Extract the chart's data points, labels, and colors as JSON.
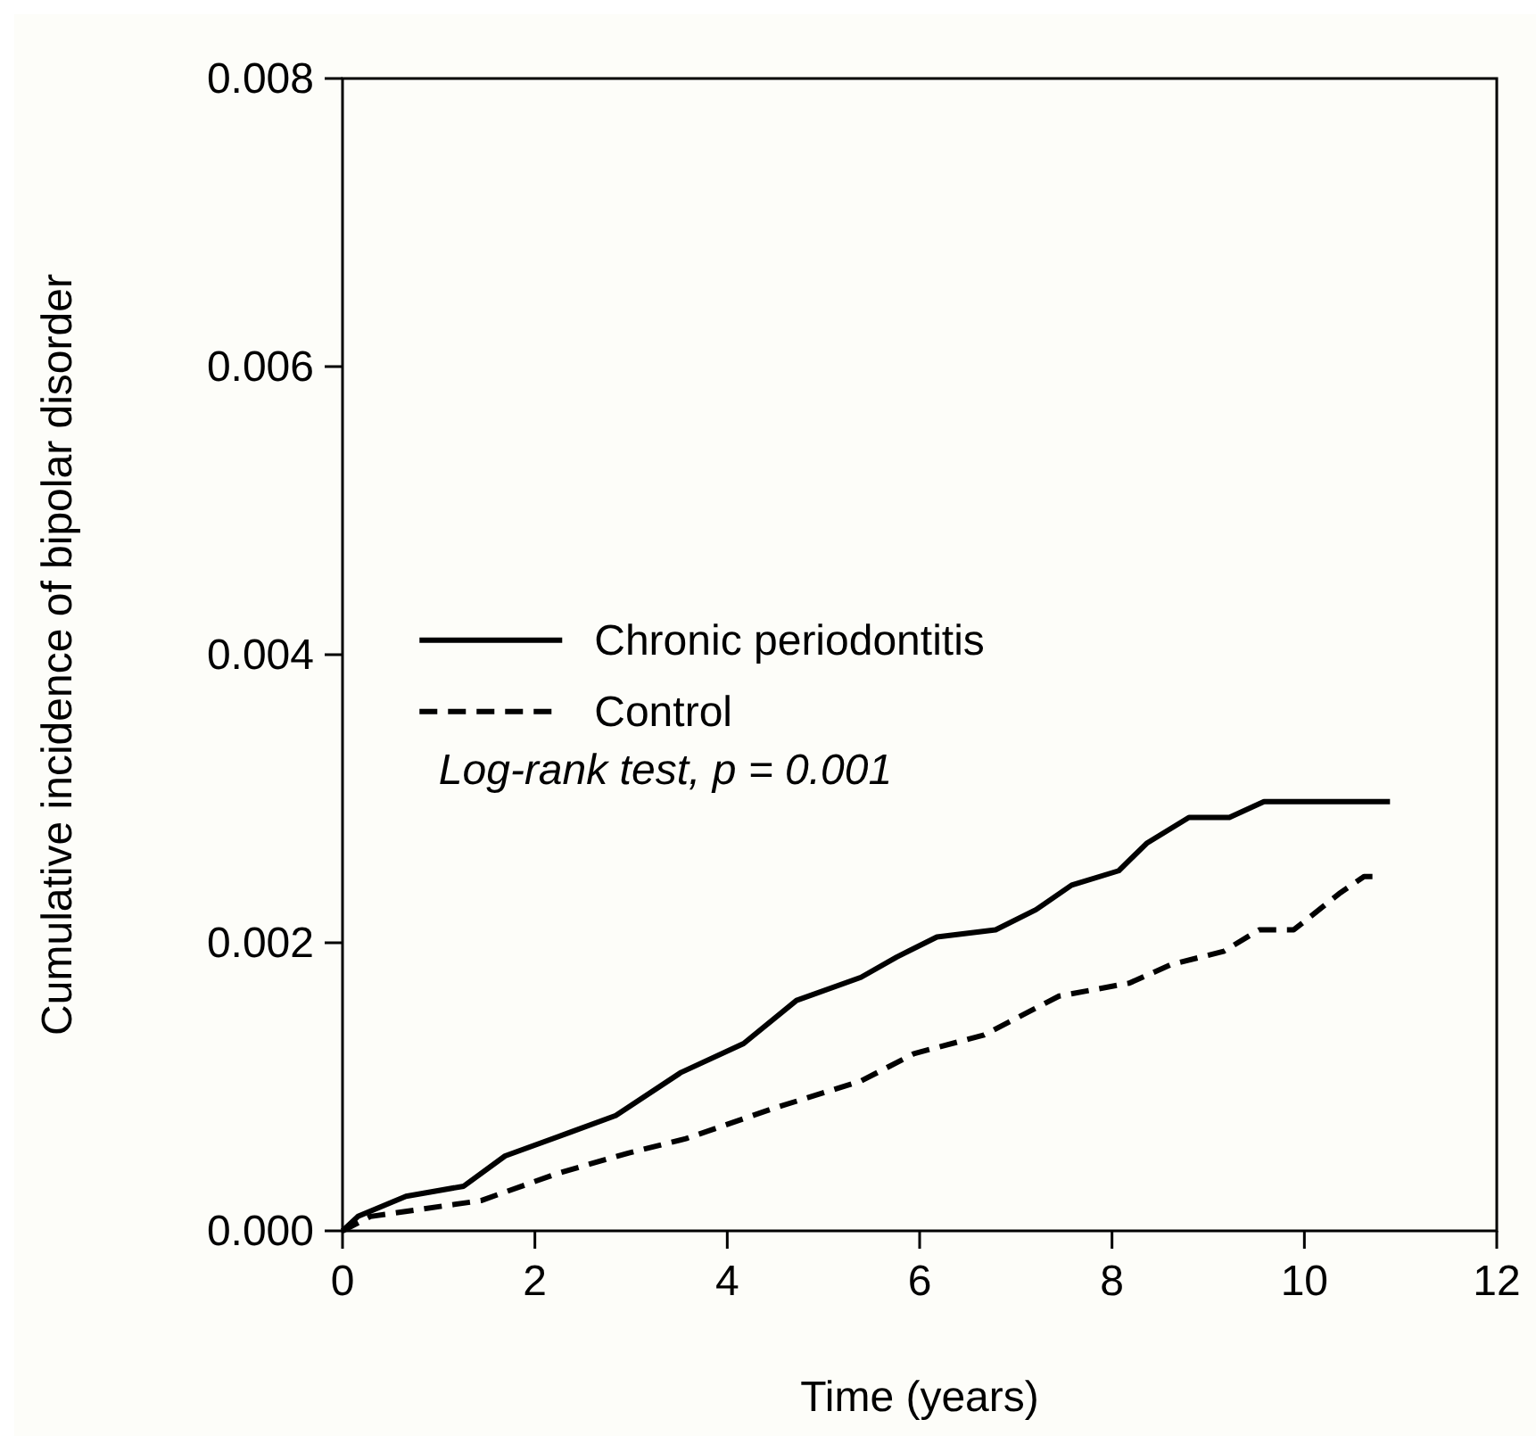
{
  "chart_data": {
    "type": "line",
    "xlabel": "Time (years)",
    "ylabel": "Cumulative incidence of bipolar disorder",
    "xlim": [
      0,
      12
    ],
    "xticks": [
      0,
      2,
      4,
      6,
      8,
      10,
      12
    ],
    "ylim": [
      0,
      0.008
    ],
    "yticks": [
      {
        "value": 0,
        "label": "0.000"
      },
      {
        "value": 0.002,
        "label": "0.002"
      },
      {
        "value": 0.004,
        "label": "0.004"
      },
      {
        "value": 0.006,
        "label": "0.006"
      },
      {
        "value": 0.008,
        "label": "0.008"
      }
    ],
    "grid": false,
    "legend": "center left",
    "annotations": [
      "Log-rank test, p = 0.001"
    ],
    "series": [
      {
        "name": "Chronic periodontitis",
        "color": "#000000",
        "line_style": "solid",
        "x": [
          0,
          0.16,
          0.66,
          1.26,
          1.69,
          2.35,
          2.84,
          3.52,
          4.17,
          4.72,
          5.39,
          5.76,
          6.18,
          6.79,
          7.21,
          7.58,
          8.07,
          8.36,
          8.8,
          9.22,
          9.58,
          10.89
        ],
        "values": [
          0,
          0.0001,
          0.00024,
          0.00031,
          0.00052,
          0.00068,
          0.0008,
          0.0011,
          0.0013,
          0.0016,
          0.00176,
          0.0019,
          0.00204,
          0.00209,
          0.00223,
          0.0024,
          0.0025,
          0.00269,
          0.00287,
          0.00287,
          0.00298,
          0.00298
        ]
      },
      {
        "name": "Control",
        "color": "#000000",
        "line_style": "dashed",
        "x": [
          0,
          0.29,
          1.44,
          2.24,
          2.97,
          3.57,
          4.48,
          5.39,
          5.94,
          6.67,
          7.45,
          8.18,
          8.62,
          9.16,
          9.53,
          9.89,
          10.36,
          10.62,
          10.73
        ],
        "values": [
          0,
          0.0001,
          0.00021,
          0.0004,
          0.00054,
          0.00064,
          0.00085,
          0.00104,
          0.00123,
          0.00136,
          0.00163,
          0.00172,
          0.00185,
          0.00194,
          0.00209,
          0.00209,
          0.00234,
          0.00246,
          0.00246
        ]
      }
    ]
  }
}
